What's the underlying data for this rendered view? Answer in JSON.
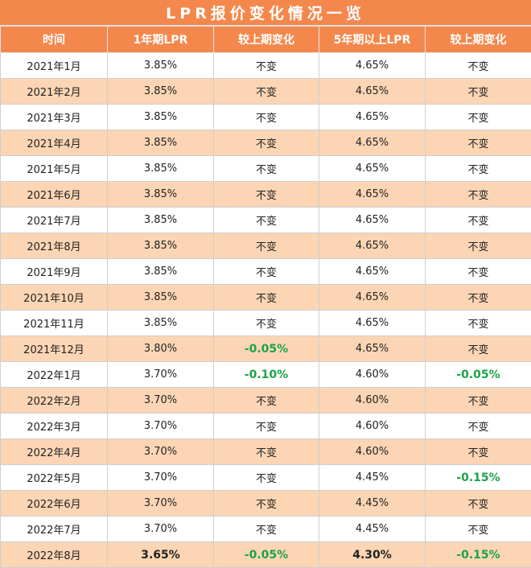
{
  "title": "LPR报价变化情况一览",
  "columns": [
    "时间",
    "1年期LPR",
    "较上期变化",
    "5年期以上LPR",
    "较上期变化"
  ],
  "rows": [
    {
      "date": "2021年1月",
      "lpr1": "3.85%",
      "chg1": "不变",
      "lpr5": "4.65%",
      "chg5": "不变"
    },
    {
      "date": "2021年2月",
      "lpr1": "3.85%",
      "chg1": "不变",
      "lpr5": "4.65%",
      "chg5": "不变"
    },
    {
      "date": "2021年3月",
      "lpr1": "3.85%",
      "chg1": "不变",
      "lpr5": "4.65%",
      "chg5": "不变"
    },
    {
      "date": "2021年4月",
      "lpr1": "3.85%",
      "chg1": "不变",
      "lpr5": "4.65%",
      "chg5": "不变"
    },
    {
      "date": "2021年5月",
      "lpr1": "3.85%",
      "chg1": "不变",
      "lpr5": "4.65%",
      "chg5": "不变"
    },
    {
      "date": "2021年6月",
      "lpr1": "3.85%",
      "chg1": "不变",
      "lpr5": "4.65%",
      "chg5": "不变"
    },
    {
      "date": "2021年7月",
      "lpr1": "3.85%",
      "chg1": "不变",
      "lpr5": "4.65%",
      "chg5": "不变"
    },
    {
      "date": "2021年8月",
      "lpr1": "3.85%",
      "chg1": "不变",
      "lpr5": "4.65%",
      "chg5": "不变"
    },
    {
      "date": "2021年9月",
      "lpr1": "3.85%",
      "chg1": "不变",
      "lpr5": "4.65%",
      "chg5": "不变"
    },
    {
      "date": "2021年10月",
      "lpr1": "3.85%",
      "chg1": "不变",
      "lpr5": "4.65%",
      "chg5": "不变"
    },
    {
      "date": "2021年11月",
      "lpr1": "3.85%",
      "chg1": "不变",
      "lpr5": "4.65%",
      "chg5": "不变"
    },
    {
      "date": "2021年12月",
      "lpr1": "3.80%",
      "chg1": "-0.05%",
      "lpr5": "4.65%",
      "chg5": "不变"
    },
    {
      "date": "2022年1月",
      "lpr1": "3.70%",
      "chg1": "-0.10%",
      "lpr5": "4.60%",
      "chg5": "-0.05%"
    },
    {
      "date": "2022年2月",
      "lpr1": "3.70%",
      "chg1": "不变",
      "lpr5": "4.60%",
      "chg5": "不变"
    },
    {
      "date": "2022年3月",
      "lpr1": "3.70%",
      "chg1": "不变",
      "lpr5": "4.60%",
      "chg5": "不变"
    },
    {
      "date": "2022年4月",
      "lpr1": "3.70%",
      "chg1": "不变",
      "lpr5": "4.60%",
      "chg5": "不变"
    },
    {
      "date": "2022年5月",
      "lpr1": "3.70%",
      "chg1": "不变",
      "lpr5": "4.45%",
      "chg5": "-0.15%"
    },
    {
      "date": "2022年6月",
      "lpr1": "3.70%",
      "chg1": "不变",
      "lpr5": "4.45%",
      "chg5": "不变"
    },
    {
      "date": "2022年7月",
      "lpr1": "3.70%",
      "chg1": "不变",
      "lpr5": "4.45%",
      "chg5": "不变"
    },
    {
      "date": "2022年8月",
      "lpr1": "3.65%",
      "chg1": "-0.05%",
      "lpr5": "4.30%",
      "chg5": "-0.15%"
    }
  ],
  "colors": {
    "header_bg": "#f4884c",
    "alt_row_bg": "#fcd5b4",
    "negative_text": "#1aa34a"
  }
}
